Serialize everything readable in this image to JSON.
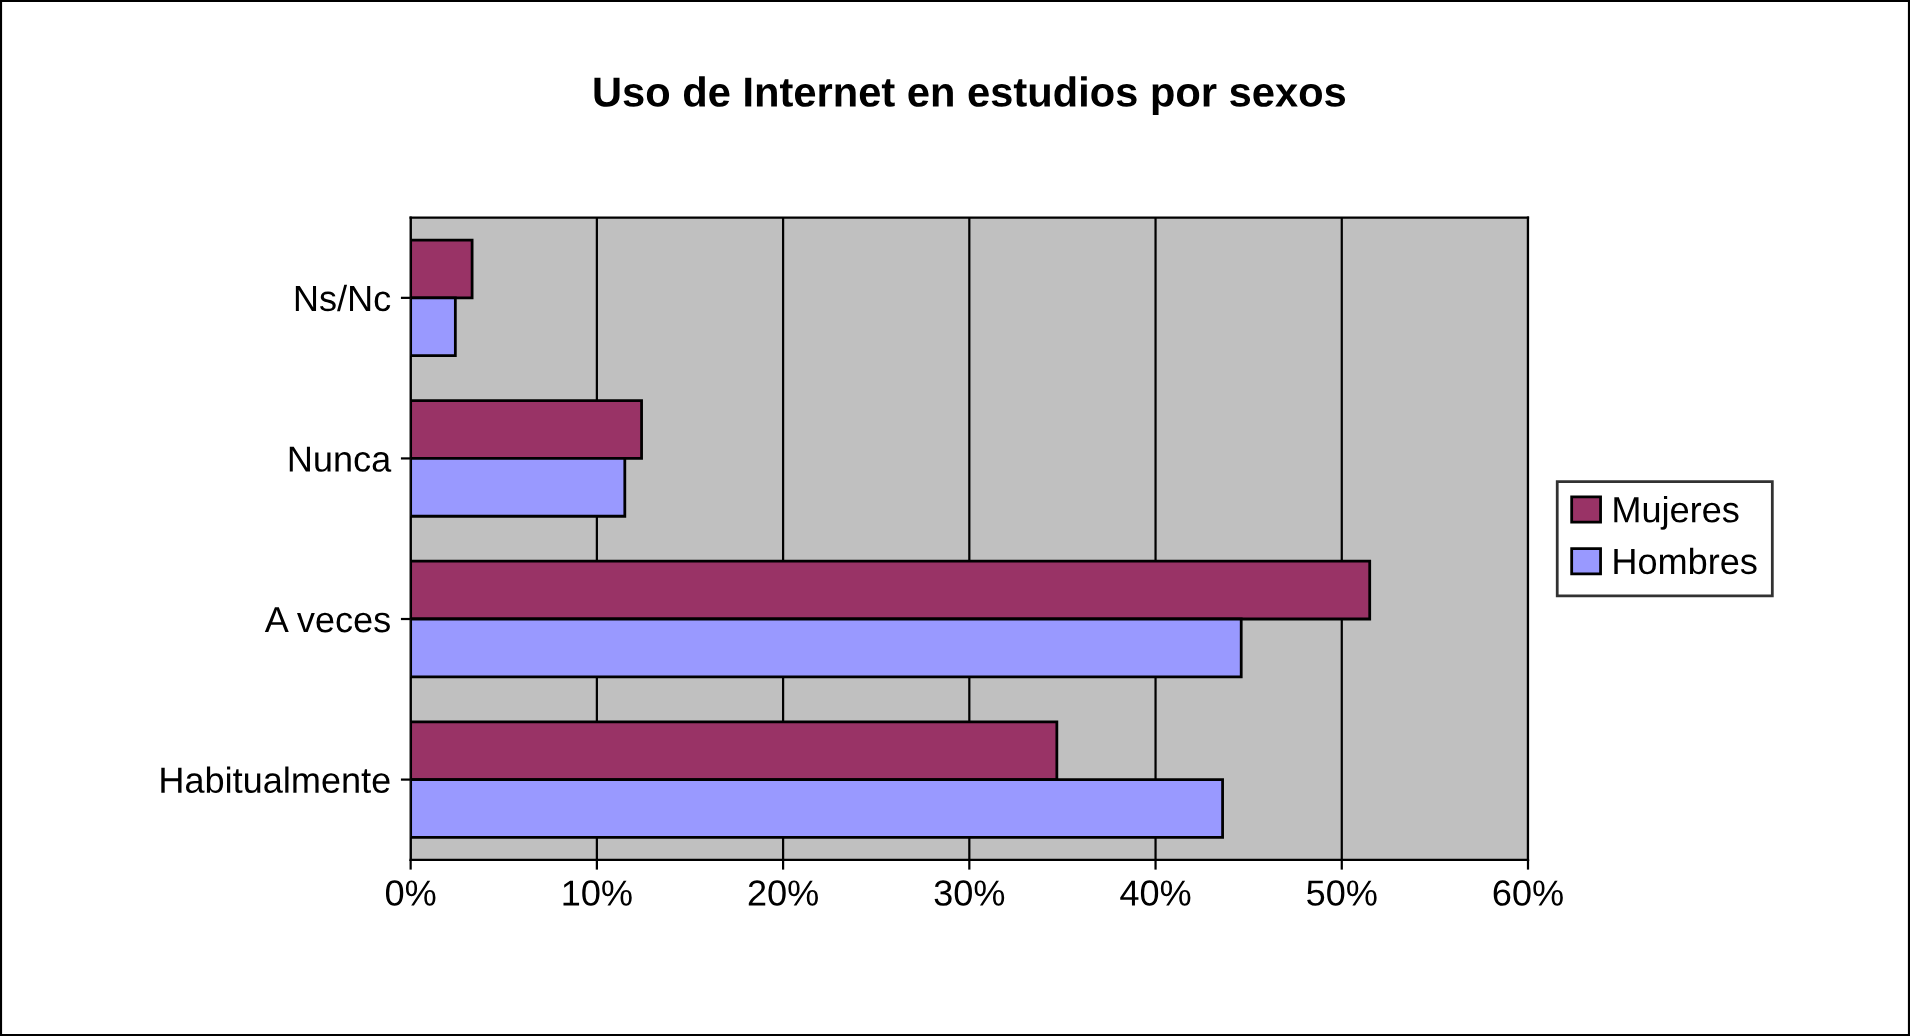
{
  "chart_data": {
    "type": "bar",
    "orientation": "horizontal",
    "title": "Uso de Internet en estudios por sexos",
    "categories": [
      "Ns/Nc",
      "Nunca",
      "A veces",
      "Habitualmente"
    ],
    "series": [
      {
        "name": "Mujeres",
        "color": "#993366",
        "values": [
          3.3,
          12.4,
          51.5,
          34.7
        ]
      },
      {
        "name": "Hombres",
        "color": "#9999ff",
        "values": [
          2.4,
          11.5,
          44.6,
          43.6
        ]
      }
    ],
    "xlim": [
      0,
      60
    ],
    "xticks": [
      {
        "value": 0,
        "label": "0%"
      },
      {
        "value": 10,
        "label": "10%"
      },
      {
        "value": 20,
        "label": "20%"
      },
      {
        "value": 30,
        "label": "30%"
      },
      {
        "value": 40,
        "label": "40%"
      },
      {
        "value": 50,
        "label": "50%"
      },
      {
        "value": 60,
        "label": "60%"
      }
    ],
    "grid": "x",
    "legend": "right"
  }
}
